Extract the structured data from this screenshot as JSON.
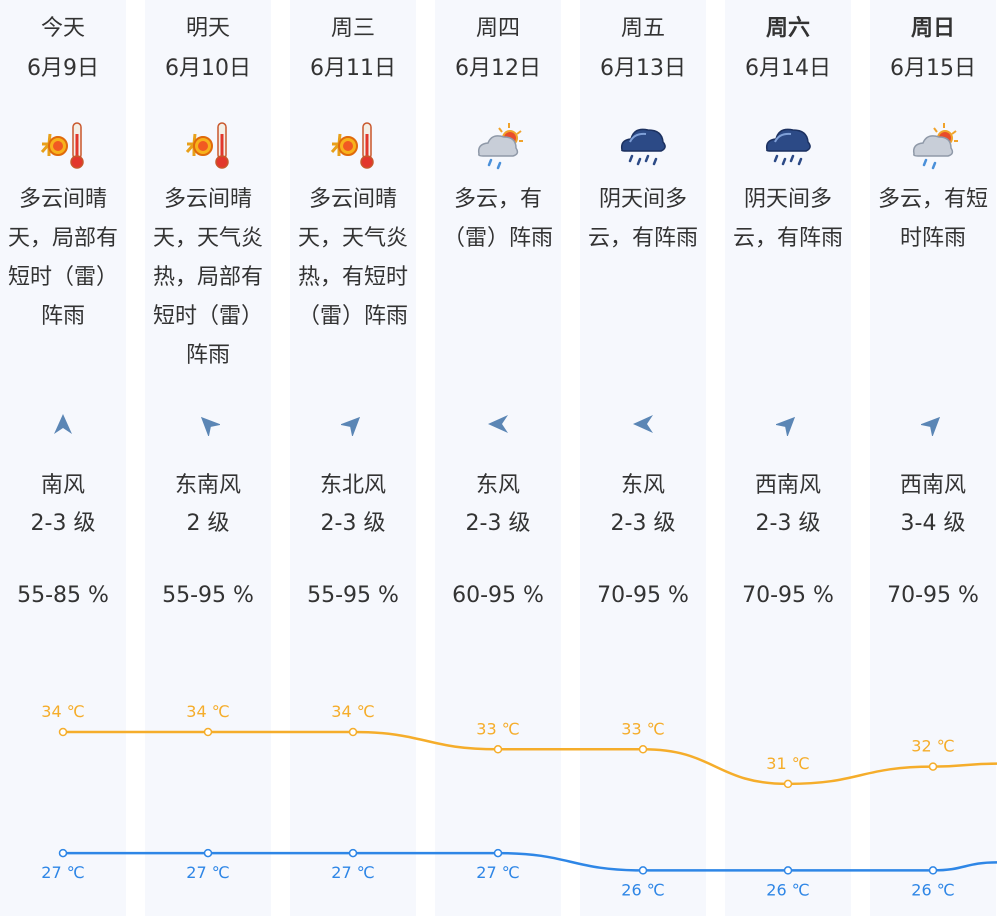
{
  "days": [
    {
      "weekday": "今天",
      "bold": false,
      "date": "6月9日",
      "icon": "sunny-hot-icon",
      "desc": "多云间晴天，局部有短时（雷）阵雨",
      "wind_dir": "南风",
      "wind_level": "2-3 级",
      "wind_icon": "wind-arrow-icon",
      "humidity": "55-85 %",
      "high": "34 ℃",
      "low": "27 ℃",
      "high_c": 34,
      "low_c": 27
    },
    {
      "weekday": "明天",
      "bold": false,
      "date": "6月10日",
      "icon": "sunny-hot-icon",
      "desc": "多云间晴天，天气炎热，局部有短时（雷）阵雨",
      "wind_dir": "东南风",
      "wind_level": "2 级",
      "wind_icon": "wind-arrow-icon",
      "humidity": "55-95 %",
      "high": "34 ℃",
      "low": "27 ℃",
      "high_c": 34,
      "low_c": 27
    },
    {
      "weekday": "周三",
      "bold": false,
      "date": "6月11日",
      "icon": "sunny-hot-icon",
      "desc": "多云间晴天，天气炎热，有短时（雷）阵雨",
      "wind_dir": "东北风",
      "wind_level": "2-3 级",
      "wind_icon": "wind-arrow-icon",
      "humidity": "55-95 %",
      "high": "34 ℃",
      "low": "27 ℃",
      "high_c": 34,
      "low_c": 27
    },
    {
      "weekday": "周四",
      "bold": false,
      "date": "6月12日",
      "icon": "cloudy-shower-icon",
      "desc": "多云，有（雷）阵雨",
      "wind_dir": "东风",
      "wind_level": "2-3 级",
      "wind_icon": "wind-arrow-icon",
      "humidity": "60-95 %",
      "high": "33 ℃",
      "low": "27 ℃",
      "high_c": 33,
      "low_c": 27
    },
    {
      "weekday": "周五",
      "bold": false,
      "date": "6月13日",
      "icon": "overcast-rain-icon",
      "desc": "阴天间多云，有阵雨",
      "wind_dir": "东风",
      "wind_level": "2-3 级",
      "wind_icon": "wind-arrow-icon",
      "humidity": "70-95 %",
      "high": "33 ℃",
      "low": "26 ℃",
      "high_c": 33,
      "low_c": 26
    },
    {
      "weekday": "周六",
      "bold": true,
      "date": "6月14日",
      "icon": "overcast-rain-icon",
      "desc": "阴天间多云，有阵雨",
      "wind_dir": "西南风",
      "wind_level": "2-3 级",
      "wind_icon": "wind-arrow-icon",
      "humidity": "70-95 %",
      "high": "31 ℃",
      "low": "26 ℃",
      "high_c": 31,
      "low_c": 26
    },
    {
      "weekday": "周日",
      "bold": true,
      "date": "6月15日",
      "icon": "cloudy-shower-icon",
      "desc": "多云，有短时阵雨",
      "wind_dir": "西南风",
      "wind_level": "3-4 级",
      "wind_icon": "wind-arrow-icon",
      "humidity": "70-95 %",
      "high": "32 ℃",
      "low": "26 ℃",
      "high_c": 32,
      "low_c": 26
    }
  ],
  "colors": {
    "column_bg": "#f6f8fd",
    "high_line": "#f5ad2b",
    "low_line": "#2e86e6",
    "wind_arrow": "#5b86b5"
  }
}
